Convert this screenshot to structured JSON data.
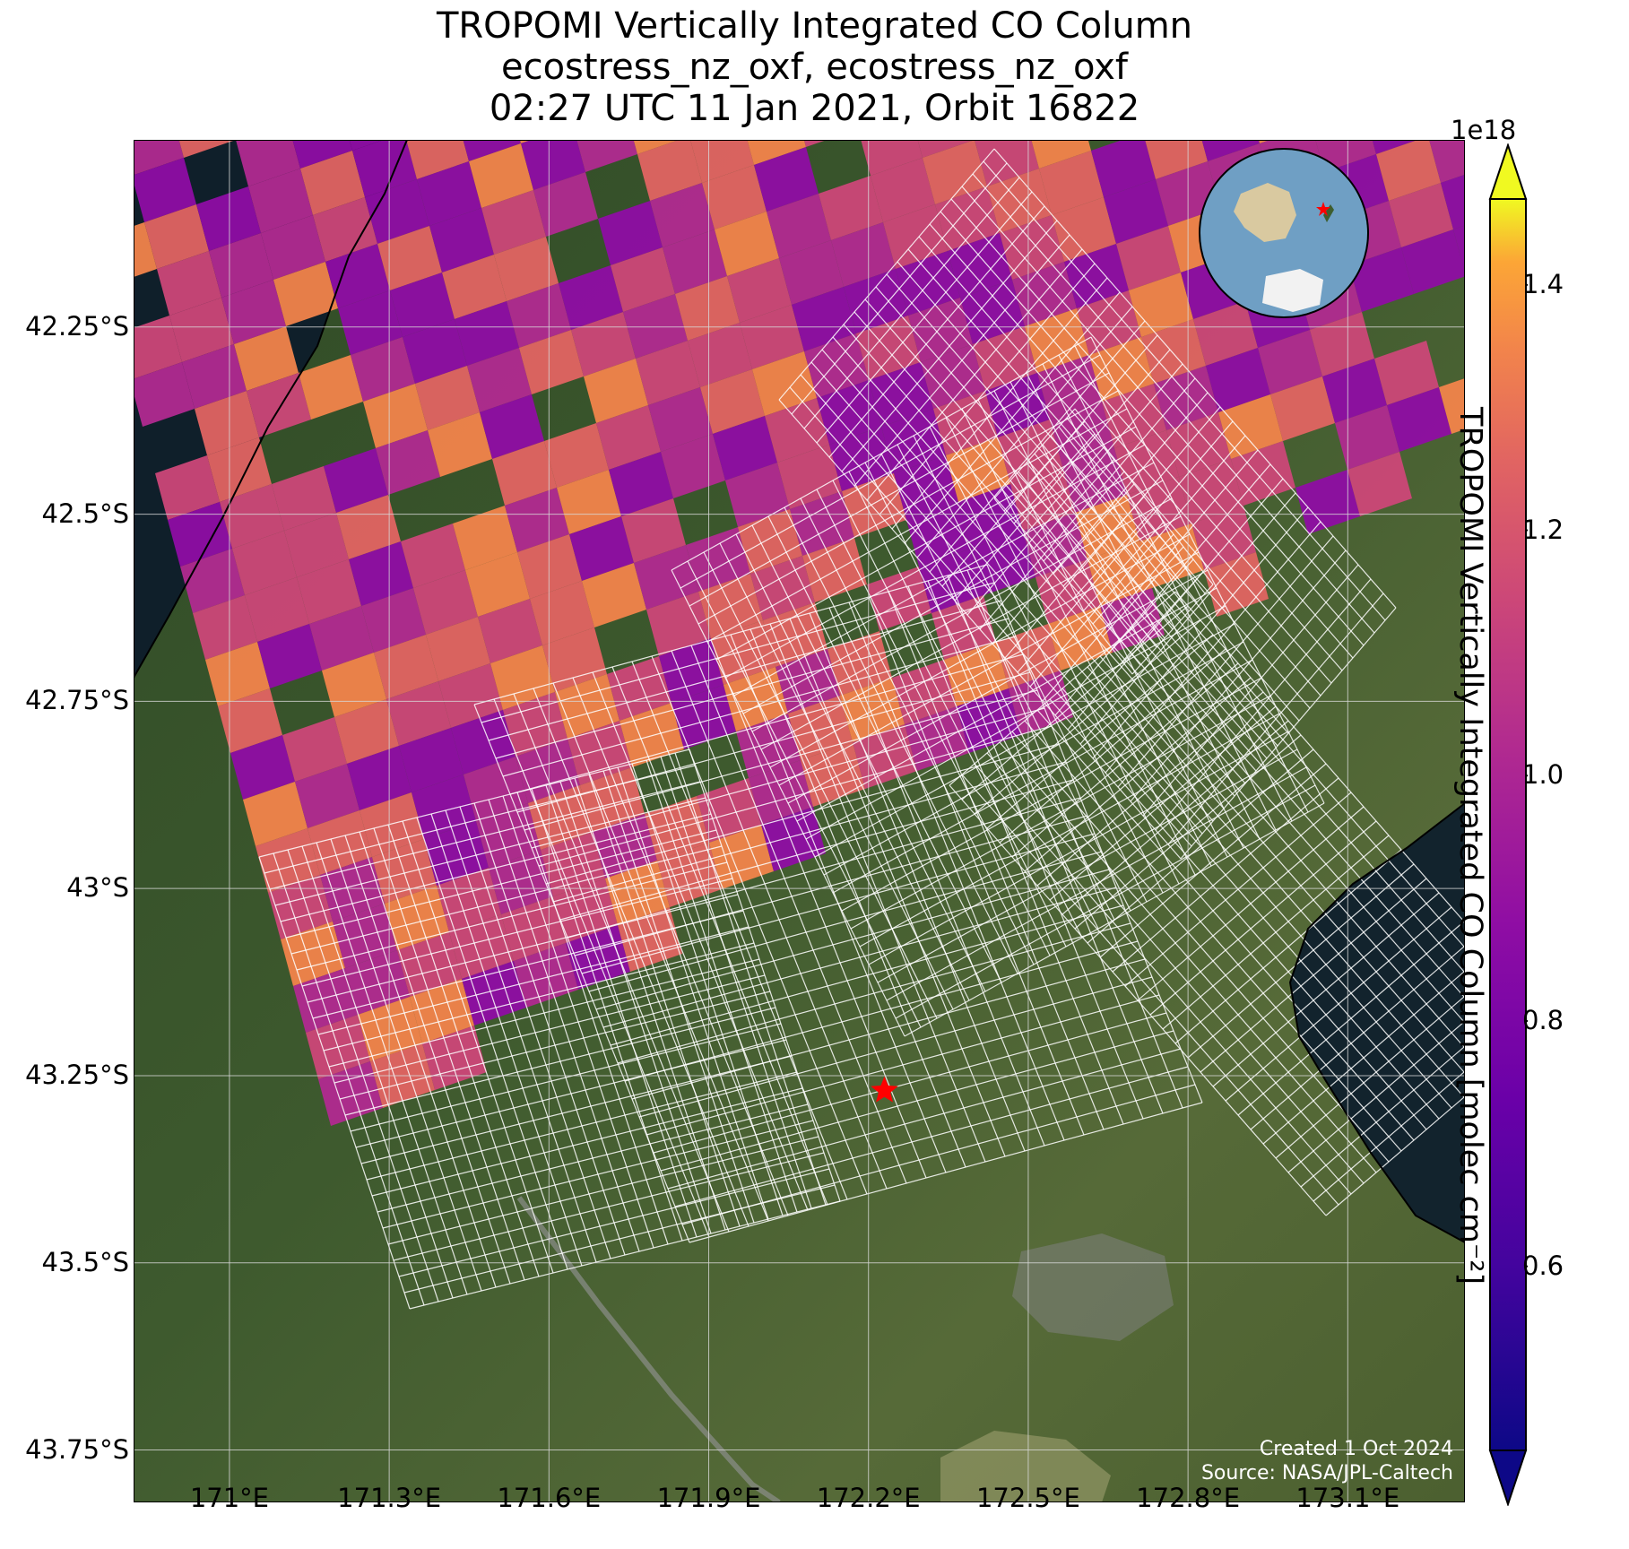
{
  "title": {
    "line1": "TROPOMI Vertically Integrated CO Column",
    "line2": "ecostress_nz_oxf, ecostress_nz_oxf",
    "line3": "02:27 UTC 11 Jan 2021, Orbit 16822"
  },
  "map": {
    "lon_range": [
      170.82,
      173.32
    ],
    "lat_range": [
      -43.82,
      -42.0
    ],
    "lat_ticks": [
      {
        "value": -42.25,
        "label": "42.25°S"
      },
      {
        "value": -42.5,
        "label": "42.5°S"
      },
      {
        "value": -42.75,
        "label": "42.75°S"
      },
      {
        "value": -43.0,
        "label": "43°S"
      },
      {
        "value": -43.25,
        "label": "43.25°S"
      },
      {
        "value": -43.5,
        "label": "43.5°S"
      },
      {
        "value": -43.75,
        "label": "43.75°S"
      }
    ],
    "lon_ticks": [
      {
        "value": 171.0,
        "label": "171°E"
      },
      {
        "value": 171.3,
        "label": "171.3°E"
      },
      {
        "value": 171.6,
        "label": "171.6°E"
      },
      {
        "value": 171.9,
        "label": "171.9°E"
      },
      {
        "value": 172.2,
        "label": "172.2°E"
      },
      {
        "value": 172.5,
        "label": "172.5°E"
      },
      {
        "value": 172.8,
        "label": "172.8°E"
      },
      {
        "value": 173.1,
        "label": "173.1°E"
      }
    ],
    "site_marker": {
      "lon": 172.23,
      "lat": -43.27,
      "color": "#ff0000"
    },
    "colors": {
      "ocean": "#0f1f2a",
      "land": "#3f5530",
      "grid": "#d8d8d8",
      "coastline": "#000000"
    }
  },
  "colorbar": {
    "label": "TROPOMI Vertically Integrated CO Column [molec cm⁻²]",
    "exponent": "1e18",
    "range": [
      0.45,
      1.47
    ],
    "ticks": [
      {
        "value": 0.6,
        "label": "0.6"
      },
      {
        "value": 0.8,
        "label": "0.8"
      },
      {
        "value": 1.0,
        "label": "1.0"
      },
      {
        "value": 1.2,
        "label": "1.2"
      },
      {
        "value": 1.4,
        "label": "1.4"
      }
    ],
    "colormap": "plasma",
    "extend": "both"
  },
  "inset": {
    "icon": "globe-icon",
    "marker_color": "#ff0000"
  },
  "credits": {
    "created": "Created 1 Oct 2024",
    "source": "Source: NASA/JPL-Caltech"
  }
}
